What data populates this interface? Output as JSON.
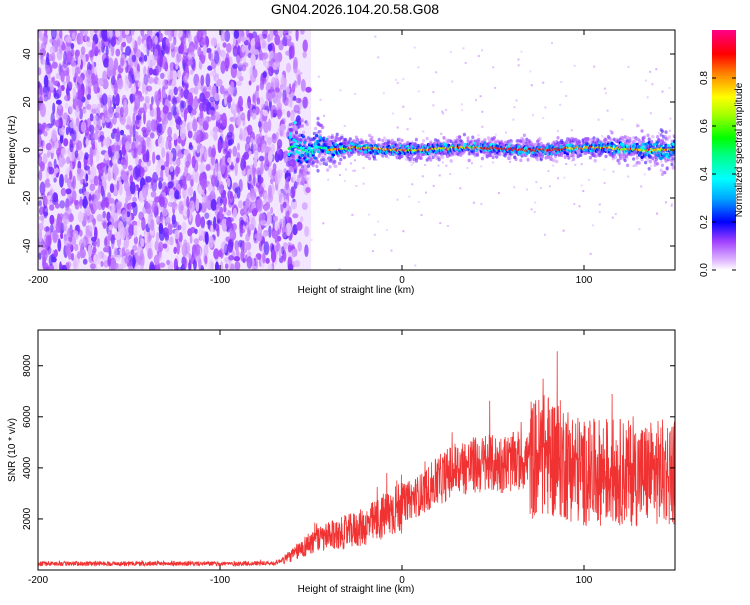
{
  "title": "GN04.2026.104.20.58.G08",
  "chart_data": [
    {
      "type": "heatmap",
      "name": "spectrogram",
      "xlabel": "Height of straight line (km)",
      "ylabel": "Frequency (Hz)",
      "xlim": [
        -200,
        150
      ],
      "ylim": [
        -50,
        50
      ],
      "xticks": [
        -200,
        -100,
        0,
        100
      ],
      "yticks": [
        -40,
        -20,
        0,
        20,
        40
      ],
      "colorbar": {
        "label": "Normalized spectral amplitude",
        "range": [
          0,
          1
        ],
        "ticks": [
          0.0,
          0.2,
          0.4,
          0.6,
          0.8
        ],
        "tick_labels": [
          "0.0",
          "0.2",
          "0.4",
          "0.6",
          "0.8"
        ]
      },
      "regions": [
        {
          "name": "noise",
          "x_range": [
            -200,
            -50
          ],
          "freq_range": [
            -50,
            50
          ],
          "amplitude": 0.12
        },
        {
          "name": "signal-line",
          "x_range": [
            -62,
            150
          ],
          "center_frequency": 0.5,
          "peak_amplitude": 0.95
        }
      ]
    },
    {
      "type": "line",
      "name": "snr",
      "xlabel": "Height of straight line (km)",
      "ylabel": "SNR (10 * v/v)",
      "xlim": [
        -200,
        150
      ],
      "ylim": [
        0,
        9400
      ],
      "xticks": [
        -200,
        -100,
        0,
        100
      ],
      "yticks": [
        2000,
        4000,
        6000,
        8000
      ],
      "color": "#f03232",
      "series": [
        {
          "name": "SNR",
          "x": [
            -200,
            -150,
            -100,
            -70,
            -60,
            -50,
            -40,
            -30,
            -20,
            -10,
            0,
            10,
            20,
            30,
            40,
            50,
            60,
            70,
            80,
            90,
            100,
            110,
            120,
            130,
            140,
            150
          ],
          "y": [
            250,
            250,
            250,
            260,
            600,
            1100,
            1300,
            1500,
            1700,
            2100,
            2600,
            2950,
            3500,
            4000,
            4100,
            4150,
            4200,
            4350,
            4500,
            4250,
            3800,
            3850,
            3850,
            3750,
            3800,
            3900
          ]
        }
      ]
    }
  ]
}
